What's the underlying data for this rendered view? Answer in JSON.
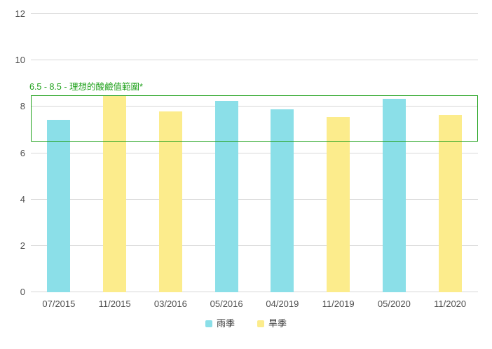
{
  "chart_data": {
    "type": "bar",
    "title": "",
    "xlabel": "",
    "ylabel": "",
    "categories": [
      "07/2015",
      "11/2015",
      "03/2016",
      "05/2016",
      "04/2019",
      "11/2019",
      "05/2020",
      "11/2020"
    ],
    "series": [
      {
        "name": "雨季",
        "color": "#8BDFE8",
        "values": [
          7.45,
          null,
          null,
          8.25,
          7.9,
          null,
          8.35,
          null
        ]
      },
      {
        "name": "旱季",
        "color": "#FCEC8C",
        "values": [
          null,
          8.45,
          7.8,
          null,
          null,
          7.55,
          null,
          7.65
        ]
      }
    ],
    "ylim": [
      0,
      12
    ],
    "yticks": [
      0,
      2,
      4,
      6,
      8,
      10,
      12
    ],
    "grid": true,
    "legend_position": "bottom",
    "plot_band": {
      "from": 6.5,
      "to": 8.5,
      "label": "6.5 - 8.5 - 理想的酸鹼值範圍*",
      "color": "#1FA11B"
    }
  },
  "colors": {
    "grid": "#D8D8D8",
    "axis_text": "#4D4D4D",
    "legend_text": "#333333",
    "background": "#FFFFFF"
  }
}
